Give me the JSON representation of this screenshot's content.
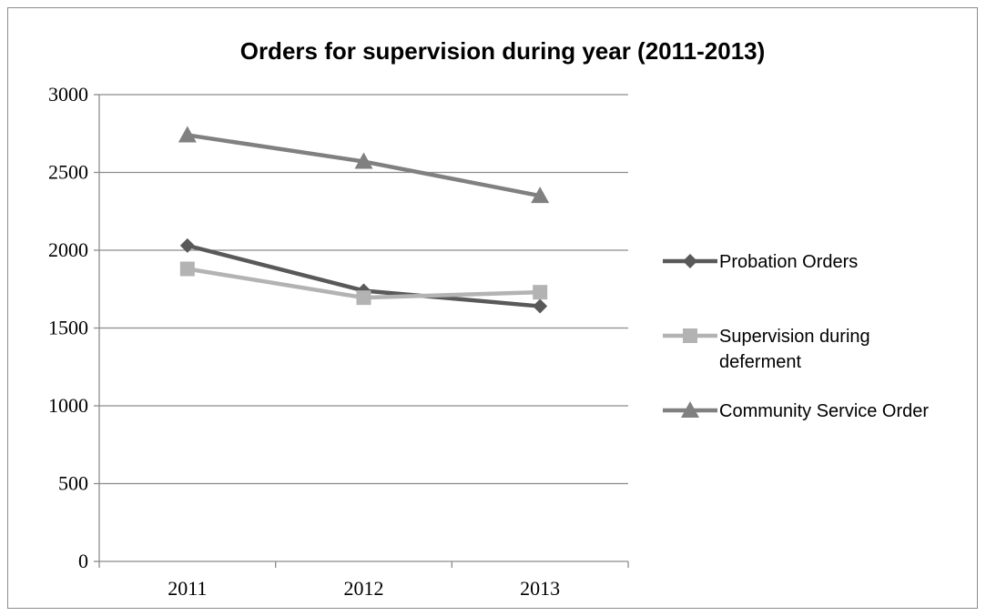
{
  "chart_data": {
    "type": "line",
    "title": "Orders for supervision during year (2011-2013)",
    "xlabel": "",
    "ylabel": "",
    "categories": [
      "2011",
      "2012",
      "2013"
    ],
    "ylim": [
      0,
      3000
    ],
    "yticks": [
      0,
      500,
      1000,
      1500,
      2000,
      2500,
      3000
    ],
    "grid": true,
    "legend_position": "right",
    "series": [
      {
        "name": "Probation Orders",
        "legend_lines": [
          "Probation Orders"
        ],
        "values": [
          2030,
          1740,
          1640
        ],
        "color": "#595959",
        "marker": "diamond"
      },
      {
        "name": "Supervision during deferment",
        "legend_lines": [
          "Supervision during",
          "deferment"
        ],
        "values": [
          1880,
          1695,
          1730
        ],
        "color": "#b3b3b3",
        "marker": "square"
      },
      {
        "name": "Community Service Order",
        "legend_lines": [
          "Community Service Order"
        ],
        "values": [
          2740,
          2570,
          2350
        ],
        "color": "#808080",
        "marker": "triangle"
      }
    ]
  }
}
